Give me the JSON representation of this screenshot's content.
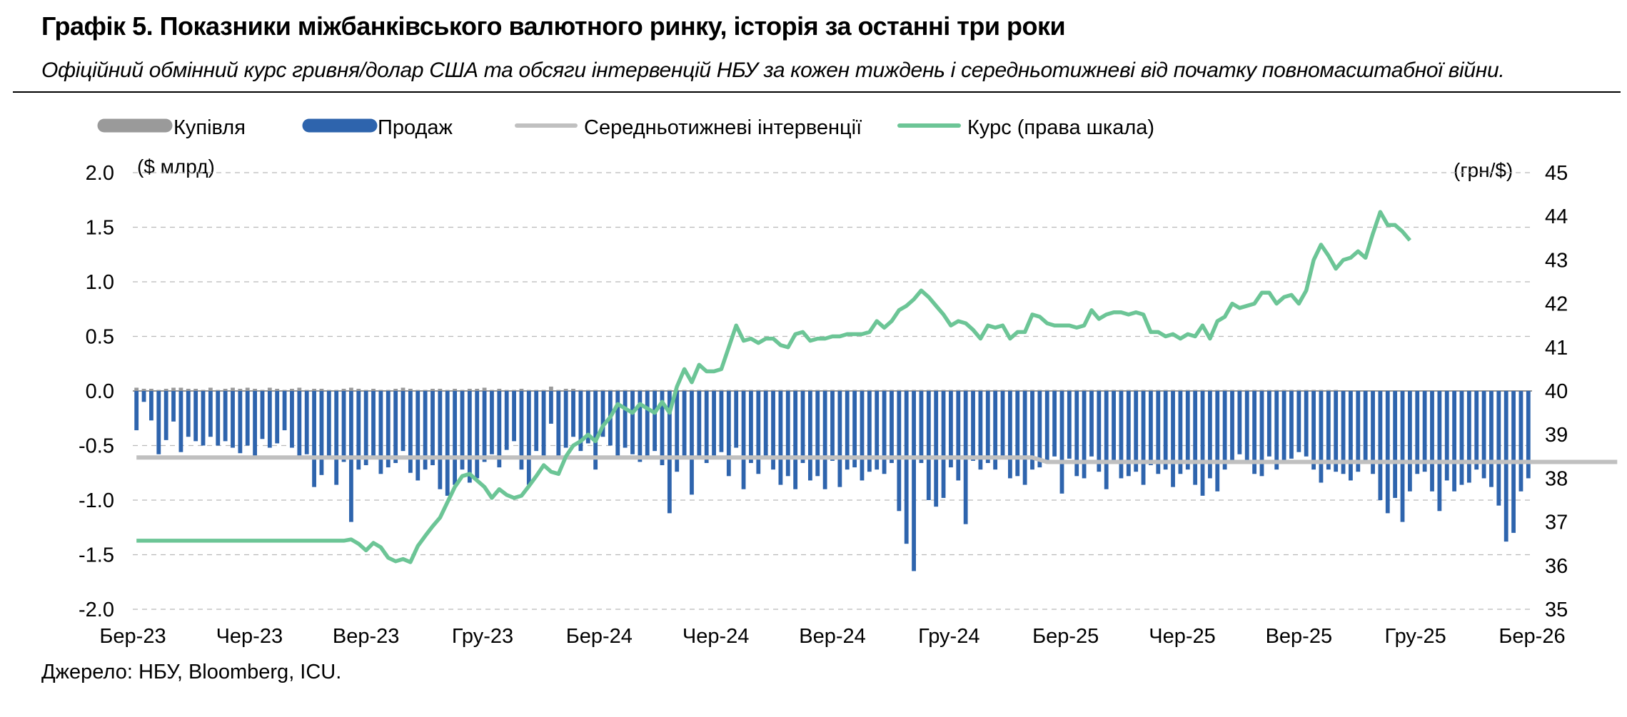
{
  "header": {
    "title": "Графік 5. Показники міжбанківського валютного ринку, історія за останні три роки",
    "subtitle": "Офіційний обмінний курс гривня/долар США та обсяги інтервенцій НБУ за кожен тиждень і середньотижневі від початку повномасштабної війни."
  },
  "footer": {
    "source": "Джерело: НБУ, Bloomberg, ICU."
  },
  "colors": {
    "buy": "#9a9a9a",
    "sell": "#2e64ad",
    "avg": "#c0c0c0",
    "rate": "#6cc596",
    "grid": "#b9b9b9"
  },
  "chart_data": {
    "type": "bar",
    "left_unit": "($ млрд)",
    "right_unit": "(грн/$)",
    "legend_position": "top-left",
    "grid": true,
    "y_left": {
      "min": -2.0,
      "max": 2.0,
      "ticks": [
        "2.0",
        "1.5",
        "1.0",
        "0.5",
        "0.0",
        "-0.5",
        "-1.0",
        "-1.5",
        "-2.0"
      ]
    },
    "y_right": {
      "min": 35,
      "max": 45,
      "ticks": [
        "45",
        "44",
        "43",
        "42",
        "41",
        "40",
        "39",
        "38",
        "37",
        "36",
        "35"
      ]
    },
    "x_ticks": [
      "Бер-23",
      "Чер-23",
      "Вер-23",
      "Гру-23",
      "Бер-24",
      "Чер-24",
      "Вер-24",
      "Гру-24",
      "Бер-25",
      "Чер-25",
      "Вер-25",
      "Гру-25",
      "Бер-26"
    ],
    "series": [
      {
        "name": "Купівля",
        "type": "bar",
        "values": [
          0.03,
          0.02,
          0.02,
          0.01,
          0.02,
          0.03,
          0.03,
          0.02,
          0.02,
          0.01,
          0.03,
          0.01,
          0.02,
          0.03,
          0.02,
          0.03,
          0.02,
          0.01,
          0.03,
          0.02,
          0.01,
          0.02,
          0.03,
          0.01,
          0.02,
          0.02,
          0.01,
          0.01,
          0.02,
          0.03,
          0.02,
          0.01,
          0.02,
          0.01,
          0.01,
          0.02,
          0.03,
          0.02,
          0.01,
          0.01,
          0.02,
          0.02,
          0.01,
          0.02,
          0.01,
          0.02,
          0.02,
          0.03,
          0.01,
          0.02,
          0.01,
          0.01,
          0.02,
          0.01,
          0.01,
          0.01,
          0.04,
          0.01,
          0.02,
          0.02,
          0.01,
          0.01,
          0.01,
          0.01,
          0.01,
          0.01,
          0.01,
          0.01,
          0.01,
          0.01,
          0.01,
          0.01,
          0.01,
          0.01,
          0.01,
          0.01,
          0.01,
          0.01,
          0.01,
          0.01,
          0.01,
          0.01,
          0.01,
          0.01,
          0.01,
          0.01,
          0.01,
          0.01,
          0.01,
          0.01,
          0.01,
          0.01,
          0.01,
          0.01,
          0.01,
          0.01,
          0.01,
          0.01,
          0.01,
          0.01,
          0.01,
          0.01,
          0.01,
          0.01,
          0.01,
          0.01,
          0.01,
          0.01,
          0.01,
          0.01,
          0.01,
          0.01,
          0.01,
          0.01,
          0.01,
          0.01,
          0.01,
          0.01,
          0.01,
          0.01,
          0.01,
          0.01,
          0.01,
          0.01,
          0.01,
          0.01,
          0.01,
          0.01,
          0.01,
          0.01,
          0.01,
          0.01,
          0.01,
          0.01,
          0.01,
          0.01,
          0.01,
          0.01,
          0.01,
          0.01,
          0.01,
          0.01,
          0.01,
          0.01,
          0.01,
          0.01,
          0.01,
          0.01,
          0.01,
          0.01,
          0.01,
          0.01,
          0.01,
          0.01,
          0.01,
          0.01,
          0.01,
          0.01,
          0.01,
          0.01,
          0.01,
          0.01,
          0.01
        ]
      },
      {
        "name": "Продаж",
        "type": "bar",
        "values": [
          -0.36,
          -0.1,
          -0.27,
          -0.58,
          -0.45,
          -0.28,
          -0.56,
          -0.42,
          -0.46,
          -0.5,
          -0.42,
          -0.5,
          -0.46,
          -0.52,
          -0.57,
          -0.5,
          -0.6,
          -0.44,
          -0.52,
          -0.48,
          -0.36,
          -0.52,
          -0.62,
          -0.58,
          -0.88,
          -0.77,
          -0.6,
          -0.86,
          -0.65,
          -1.2,
          -0.72,
          -0.68,
          -0.6,
          -0.76,
          -0.7,
          -0.66,
          -0.55,
          -0.75,
          -0.82,
          -0.72,
          -0.68,
          -0.9,
          -0.96,
          -0.86,
          -0.72,
          -0.84,
          -0.8,
          -0.65,
          -0.58,
          -0.7,
          -0.54,
          -0.46,
          -0.72,
          -0.86,
          -0.55,
          -0.6,
          -0.3,
          -0.6,
          -0.52,
          -0.42,
          -0.55,
          -0.48,
          -0.72,
          -0.42,
          -0.5,
          -0.62,
          -0.52,
          -0.58,
          -0.65,
          -0.62,
          -0.55,
          -0.68,
          -1.12,
          -0.74,
          -0.6,
          -0.95,
          -0.6,
          -0.66,
          -0.62,
          -0.56,
          -0.78,
          -0.52,
          -0.9,
          -0.66,
          -0.76,
          -0.6,
          -0.72,
          -0.86,
          -0.78,
          -0.9,
          -0.66,
          -0.82,
          -0.78,
          -0.9,
          -0.64,
          -0.88,
          -0.72,
          -0.7,
          -0.82,
          -0.74,
          -0.72,
          -0.76,
          -0.66,
          -1.1,
          -1.4,
          -1.65,
          -0.66,
          -1.0,
          -1.06,
          -0.98,
          -0.7,
          -0.82,
          -1.22,
          -0.64,
          -0.72,
          -0.66,
          -0.72,
          -0.6,
          -0.8,
          -0.78,
          -0.86,
          -0.72,
          -0.7,
          -0.66,
          -0.6,
          -0.94,
          -0.62,
          -0.78,
          -0.8,
          -0.6,
          -0.74,
          -0.9,
          -0.66,
          -0.8,
          -0.78,
          -0.74,
          -0.86,
          -0.68,
          -0.76,
          -0.72,
          -0.88,
          -0.76,
          -0.72,
          -0.86,
          -0.96,
          -0.8,
          -0.92,
          -0.72,
          -0.66,
          -0.58,
          -0.66,
          -0.76,
          -0.78,
          -0.6,
          -0.72,
          -0.66,
          -0.62,
          -0.56,
          -0.6,
          -0.72,
          -0.84,
          -0.72,
          -0.74,
          -0.76,
          -0.82,
          -0.74,
          -0.66,
          -0.76,
          -1.0,
          -1.12,
          -0.98,
          -1.2,
          -0.92,
          -0.76,
          -0.74,
          -0.92,
          -1.1,
          -0.82,
          -0.92,
          -0.86,
          -0.84,
          -0.72,
          -0.8,
          -0.88,
          -1.05,
          -1.38,
          -1.3,
          -0.92,
          -0.8
        ]
      },
      {
        "name": "Середньотижневі інтервенції",
        "type": "line",
        "values": [
          -0.61,
          -0.61,
          -0.61,
          -0.61,
          -0.61,
          -0.61,
          -0.61,
          -0.61,
          -0.61,
          -0.61,
          -0.61,
          -0.61,
          -0.61,
          -0.61,
          -0.61,
          -0.61,
          -0.61,
          -0.61,
          -0.61,
          -0.61,
          -0.61,
          -0.61,
          -0.61,
          -0.61,
          -0.61,
          -0.61,
          -0.61,
          -0.61,
          -0.61,
          -0.61,
          -0.61,
          -0.61,
          -0.61,
          -0.61,
          -0.61,
          -0.61,
          -0.61,
          -0.61,
          -0.61,
          -0.61,
          -0.61,
          -0.61,
          -0.61,
          -0.61,
          -0.61,
          -0.61,
          -0.61,
          -0.61,
          -0.61,
          -0.61,
          -0.61,
          -0.61,
          -0.61,
          -0.61,
          -0.61,
          -0.61,
          -0.61,
          -0.61,
          -0.61,
          -0.61,
          -0.61,
          -0.61,
          -0.61,
          -0.61,
          -0.61,
          -0.61,
          -0.61,
          -0.61,
          -0.61,
          -0.61,
          -0.61,
          -0.61,
          -0.61,
          -0.61,
          -0.61,
          -0.61,
          -0.61,
          -0.61,
          -0.61,
          -0.61,
          -0.61,
          -0.61,
          -0.61,
          -0.61,
          -0.61,
          -0.61,
          -0.61,
          -0.61,
          -0.61,
          -0.61,
          -0.61,
          -0.61,
          -0.61,
          -0.61,
          -0.61,
          -0.61,
          -0.61,
          -0.61,
          -0.61,
          -0.61,
          -0.61,
          -0.61,
          -0.61,
          -0.61,
          -0.61,
          -0.61,
          -0.61,
          -0.61,
          -0.61,
          -0.61,
          -0.61,
          -0.61,
          -0.61,
          -0.61,
          -0.61,
          -0.61,
          -0.61,
          -0.61,
          -0.61,
          -0.61,
          -0.61,
          -0.61,
          -0.63,
          -0.65,
          -0.65,
          -0.65,
          -0.65,
          -0.65,
          -0.65,
          -0.65,
          -0.65,
          -0.65,
          -0.65,
          -0.65,
          -0.65,
          -0.65,
          -0.65,
          -0.65,
          -0.65,
          -0.65,
          -0.65,
          -0.65,
          -0.65,
          -0.65,
          -0.65,
          -0.65,
          -0.65,
          -0.65,
          -0.65,
          -0.65,
          -0.65,
          -0.65,
          -0.65,
          -0.65,
          -0.65,
          -0.65,
          -0.65,
          -0.65,
          -0.65,
          -0.65,
          -0.65,
          -0.65,
          -0.65,
          -0.65,
          -0.65,
          -0.65,
          -0.65,
          -0.65,
          -0.65,
          -0.65,
          -0.65,
          -0.65,
          -0.65,
          -0.65,
          -0.65,
          -0.65,
          -0.65,
          -0.65,
          -0.65,
          -0.65,
          -0.65,
          -0.65,
          -0.65,
          -0.65,
          -0.65,
          -0.65,
          -0.65,
          -0.65,
          -0.65,
          -0.65,
          -0.65,
          -0.65,
          -0.65,
          -0.65,
          -0.65,
          -0.65,
          -0.65,
          -0.65,
          -0.65,
          -0.65,
          -0.65
        ]
      },
      {
        "name": "Курс (права шкала)",
        "type": "line",
        "axis": "right",
        "values": [
          36.57,
          36.57,
          36.57,
          36.57,
          36.57,
          36.57,
          36.57,
          36.57,
          36.57,
          36.57,
          36.57,
          36.57,
          36.57,
          36.57,
          36.57,
          36.57,
          36.57,
          36.57,
          36.57,
          36.57,
          36.57,
          36.57,
          36.57,
          36.57,
          36.57,
          36.57,
          36.57,
          36.57,
          36.57,
          36.6,
          36.5,
          36.35,
          36.52,
          36.42,
          36.18,
          36.1,
          36.15,
          36.08,
          36.45,
          36.68,
          36.9,
          37.1,
          37.45,
          37.8,
          38.05,
          38.1,
          37.95,
          37.8,
          37.55,
          37.75,
          37.62,
          37.55,
          37.6,
          37.82,
          38.05,
          38.3,
          38.15,
          38.1,
          38.5,
          38.75,
          38.85,
          39.0,
          38.85,
          39.2,
          39.4,
          39.7,
          39.6,
          39.5,
          39.7,
          39.6,
          39.5,
          39.75,
          39.5,
          40.1,
          40.5,
          40.2,
          40.6,
          40.45,
          40.45,
          40.5,
          41.0,
          41.5,
          41.15,
          41.2,
          41.1,
          41.2,
          41.2,
          41.05,
          41.0,
          41.3,
          41.35,
          41.15,
          41.2,
          41.2,
          41.25,
          41.25,
          41.3,
          41.3,
          41.3,
          41.35,
          41.6,
          41.45,
          41.6,
          41.85,
          41.95,
          42.1,
          42.3,
          42.15,
          41.95,
          41.75,
          41.5,
          41.6,
          41.55,
          41.4,
          41.2,
          41.5,
          41.45,
          41.5,
          41.2,
          41.35,
          41.35,
          41.75,
          41.7,
          41.55,
          41.5,
          41.5,
          41.5,
          41.45,
          41.5,
          41.85,
          41.65,
          41.75,
          41.8,
          41.8,
          41.75,
          41.8,
          41.75,
          41.35,
          41.35,
          41.25,
          41.3,
          41.2,
          41.3,
          41.25,
          41.5,
          41.2,
          41.6,
          41.7,
          42.0,
          41.9,
          41.95,
          42.0,
          42.25,
          42.25,
          42.0,
          42.15,
          42.2,
          42.0,
          42.3,
          43.0,
          43.35,
          43.1,
          42.8,
          43.0,
          43.05,
          43.2,
          43.05,
          43.6,
          44.1,
          43.8,
          43.8,
          43.65,
          43.45
        ]
      }
    ]
  }
}
